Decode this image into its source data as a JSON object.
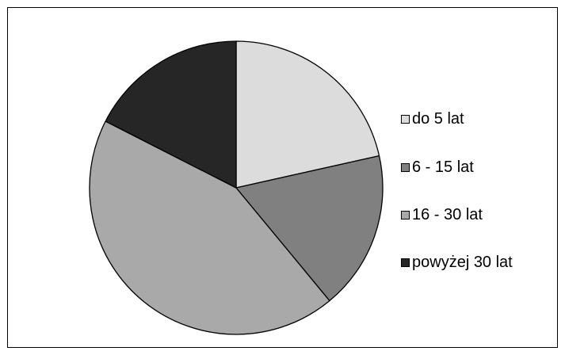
{
  "chart_data": {
    "type": "pie",
    "title": "",
    "start_angle_deg": 0,
    "direction": "clockwise",
    "legend_position": "right",
    "slices": [
      {
        "label": "do 5 lat",
        "value": 21.5,
        "color": "#dcdcdc"
      },
      {
        "label": "6 - 15 lat",
        "value": 17.5,
        "color": "#808080"
      },
      {
        "label": "16 - 30 lat",
        "value": 43.5,
        "color": "#a9a9a9"
      },
      {
        "label": "powyżej 30 lat",
        "value": 17.5,
        "color": "#262626"
      }
    ]
  }
}
